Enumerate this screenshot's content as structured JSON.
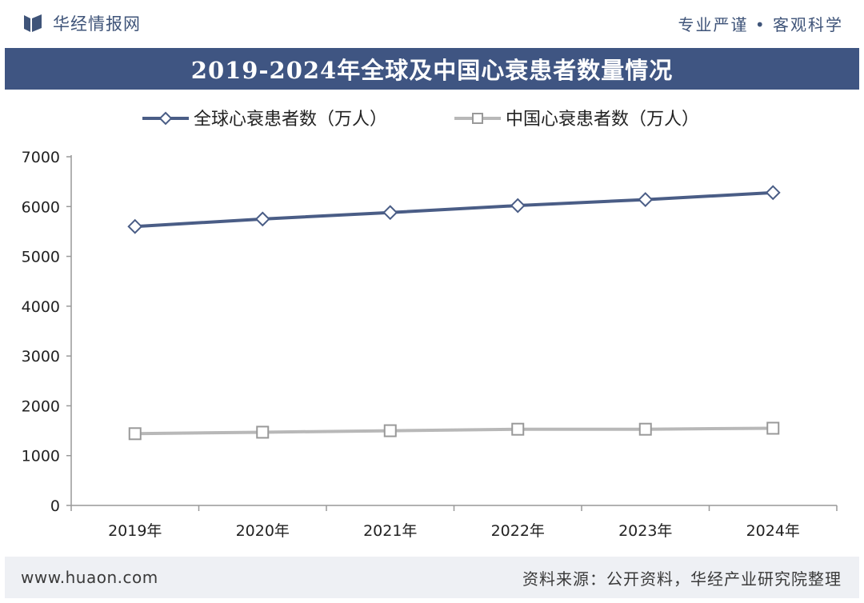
{
  "header": {
    "brand": "华经情报网",
    "slogan": "专业严谨 • 客观科学"
  },
  "footer": {
    "website": "www.huaon.com",
    "source": "资料来源：公开资料，华经产业研究院整理"
  },
  "colors": {
    "title_bar": "#3f5582",
    "global_series": "#4a5d86",
    "china_series": "#b8b8b8",
    "brand": "#3f5479"
  },
  "chart_data": {
    "type": "line",
    "title": "2019-2024年全球及中国心衰患者数量情况",
    "categories": [
      "2019年",
      "2020年",
      "2021年",
      "2022年",
      "2023年",
      "2024年"
    ],
    "series": [
      {
        "name": "全球心衰患者数（万人）",
        "values": [
          5600,
          5750,
          5880,
          6020,
          6140,
          6280
        ],
        "marker": "diamond",
        "color": "#4a5d86"
      },
      {
        "name": "中国心衰患者数（万人）",
        "values": [
          1440,
          1470,
          1500,
          1530,
          1530,
          1550
        ],
        "marker": "square",
        "color": "#b8b8b8"
      }
    ],
    "ylim": [
      0,
      7000
    ],
    "yticks": [
      0,
      1000,
      2000,
      3000,
      4000,
      5000,
      6000,
      7000
    ],
    "xlabel": "",
    "ylabel": "",
    "grid": false,
    "legend_position": "top"
  }
}
